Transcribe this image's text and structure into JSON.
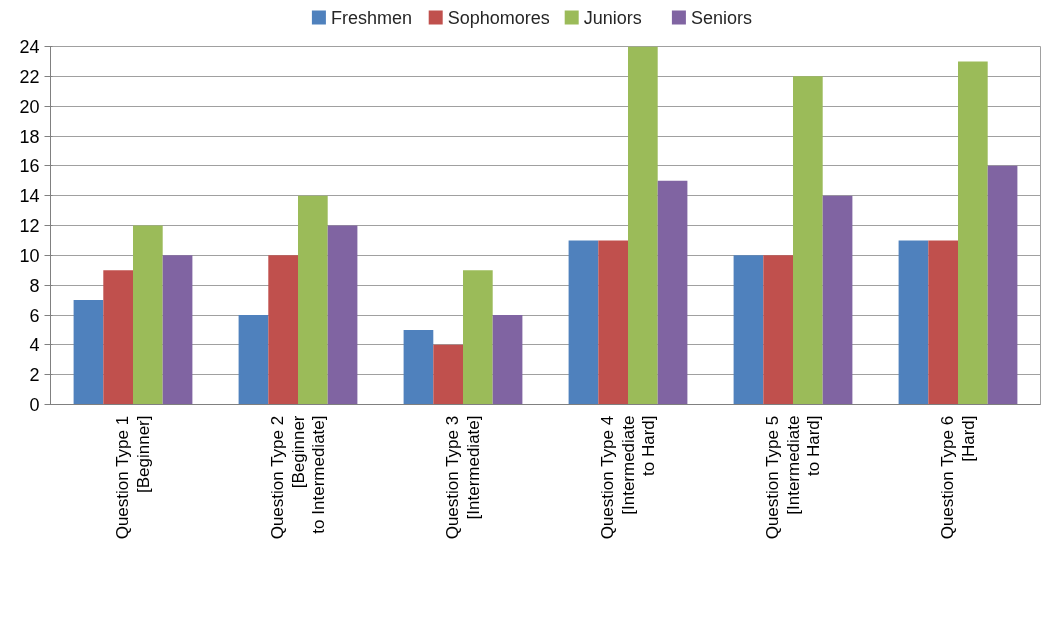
{
  "chart_data": {
    "type": "bar",
    "categories": [
      "Question Type 1\n[Beginner]",
      "Question Type 2\n[Beginner\nto Intermediate]",
      "Question Type 3\n[Intermediate]",
      "Question Type 4\n[Intermediate\nto Hard]",
      "Question Type 5\n[Intermediate\nto Hard]",
      "Question Type 6\n[Hard]"
    ],
    "series": [
      {
        "name": "Freshmen",
        "color": "#4f81bd",
        "values": [
          7,
          6,
          5,
          11,
          10,
          11
        ]
      },
      {
        "name": "Sophomores",
        "color": "#c0504d",
        "values": [
          9,
          10,
          4,
          11,
          10,
          11
        ]
      },
      {
        "name": "Juniors",
        "color": "#9bbb59",
        "values": [
          12,
          14,
          9,
          24,
          22,
          23
        ]
      },
      {
        "name": "Seniors",
        "color": "#8064a2",
        "values": [
          10,
          12,
          6,
          15,
          14,
          16
        ]
      }
    ],
    "ylim": [
      0,
      24
    ],
    "yticks": [
      0,
      2,
      4,
      6,
      8,
      10,
      12,
      14,
      16,
      18,
      20,
      22,
      24
    ],
    "grid": "y",
    "legend": "top"
  }
}
